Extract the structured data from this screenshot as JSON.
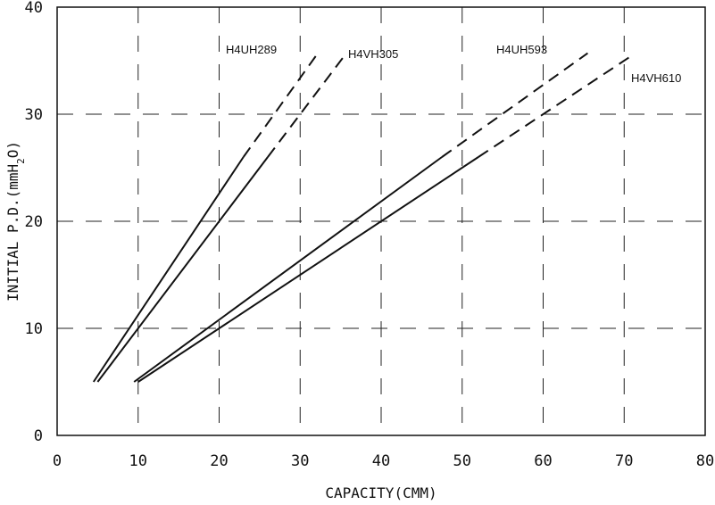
{
  "chart_data": {
    "type": "line",
    "title": "",
    "xlabel": "CAPACITY(CMM)",
    "ylabel_prefix": "INITIAL P.D.(mmH",
    "ylabel_sub": "2",
    "ylabel_suffix": "O)",
    "xlim": [
      0,
      80
    ],
    "ylim": [
      0,
      40
    ],
    "xticks": [
      0,
      10,
      20,
      30,
      40,
      50,
      60,
      70,
      80
    ],
    "yticks": [
      0,
      10,
      20,
      30,
      40
    ],
    "grid": true,
    "legend": "none",
    "series": [
      {
        "name": "H4UH289",
        "solid": [
          [
            4.5,
            5
          ],
          [
            23.0,
            26
          ]
        ],
        "dashed": [
          [
            23.0,
            26
          ],
          [
            32.0,
            35.5
          ]
        ]
      },
      {
        "name": "H4VH305",
        "solid": [
          [
            5.0,
            5
          ],
          [
            26.0,
            26
          ]
        ],
        "dashed": [
          [
            26.0,
            26
          ],
          [
            35.5,
            35.5
          ]
        ]
      },
      {
        "name": "H4UH593",
        "solid": [
          [
            9.5,
            5
          ],
          [
            47.5,
            26
          ]
        ],
        "dashed": [
          [
            47.5,
            26
          ],
          [
            65.5,
            35.7
          ]
        ]
      },
      {
        "name": "H4VH610",
        "solid": [
          [
            10.0,
            5
          ],
          [
            52.0,
            26
          ]
        ],
        "dashed": [
          [
            52.0,
            26
          ],
          [
            71.0,
            35.5
          ]
        ]
      }
    ]
  }
}
